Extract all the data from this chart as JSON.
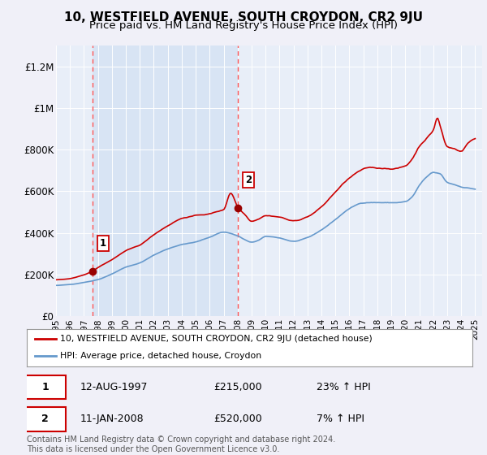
{
  "title": "10, WESTFIELD AVENUE, SOUTH CROYDON, CR2 9JU",
  "subtitle": "Price paid vs. HM Land Registry's House Price Index (HPI)",
  "title_fontsize": 11,
  "subtitle_fontsize": 9.5,
  "ylim": [
    0,
    1300000
  ],
  "yticks": [
    0,
    200000,
    400000,
    600000,
    800000,
    1000000,
    1200000
  ],
  "ytick_labels": [
    "£0",
    "£200K",
    "£400K",
    "£600K",
    "£800K",
    "£1M",
    "£1.2M"
  ],
  "background_color": "#f0f0f8",
  "plot_bg_color": "#e8eef8",
  "grid_color": "#ffffff",
  "shade_color": "#d8e4f4",
  "hpi_color": "#6699cc",
  "price_color": "#cc0000",
  "dashed_line_color": "#ff5555",
  "marker_color": "#990000",
  "sale1_x": 1997.62,
  "sale1_y": 215000,
  "sale2_x": 2008.04,
  "sale2_y": 520000,
  "annotation1_label": "1",
  "annotation2_label": "2",
  "legend_label1": "10, WESTFIELD AVENUE, SOUTH CROYDON, CR2 9JU (detached house)",
  "legend_label2": "HPI: Average price, detached house, Croydon",
  "table_row1": [
    "1",
    "12-AUG-1997",
    "£215,000",
    "23% ↑ HPI"
  ],
  "table_row2": [
    "2",
    "11-JAN-2008",
    "£520,000",
    "7% ↑ HPI"
  ],
  "footnote": "Contains HM Land Registry data © Crown copyright and database right 2024.\nThis data is licensed under the Open Government Licence v3.0.",
  "xmin": 1995.0,
  "xmax": 2025.5
}
